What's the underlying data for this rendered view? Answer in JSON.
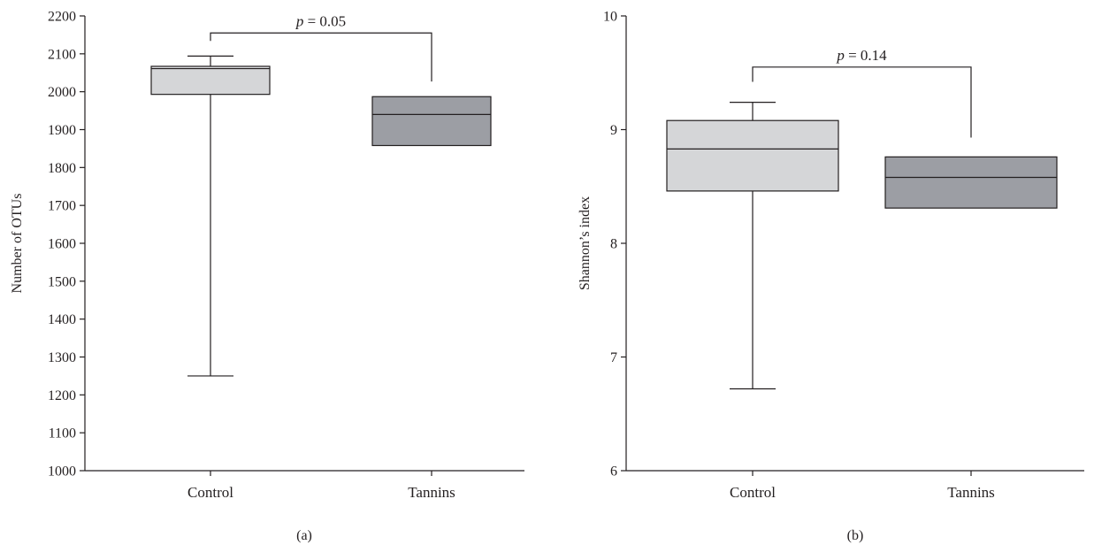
{
  "chart_data": [
    {
      "type": "box",
      "panel_label": "(a)",
      "ylabel": "Number of OTUs",
      "xlabel": "",
      "ylim": [
        1000,
        2200
      ],
      "yticks": [
        1000,
        1100,
        1200,
        1300,
        1400,
        1500,
        1600,
        1700,
        1800,
        1900,
        2000,
        2100,
        2200
      ],
      "categories": [
        "Control",
        "Tannins"
      ],
      "boxes": [
        {
          "category": "Control",
          "min": 1250,
          "q1": 1993,
          "median": 2061,
          "q3": 2067,
          "max": 2094,
          "color": "#d5d6d8"
        },
        {
          "category": "Tannins",
          "min": 1858,
          "q1": 1858,
          "median": 1940,
          "q3": 1987,
          "max": 1987,
          "color": "#9c9ea4"
        }
      ],
      "comparison": {
        "p_symbol": "p",
        "p_text": " = 0.05",
        "left_y": 2134,
        "top_y": 2155,
        "right_y": 2027
      }
    },
    {
      "type": "box",
      "panel_label": "(b)",
      "ylabel": "Shannon’s index",
      "xlabel": "",
      "ylim": [
        6,
        10
      ],
      "yticks": [
        6,
        7,
        8,
        9,
        10
      ],
      "categories": [
        "Control",
        "Tannins"
      ],
      "boxes": [
        {
          "category": "Control",
          "min": 6.72,
          "q1": 8.46,
          "median": 8.83,
          "q3": 9.08,
          "max": 9.24,
          "color": "#d5d6d8"
        },
        {
          "category": "Tannins",
          "min": 8.31,
          "q1": 8.31,
          "median": 8.58,
          "q3": 8.76,
          "max": 8.76,
          "color": "#9c9ea4"
        }
      ],
      "comparison": {
        "p_symbol": "p",
        "p_text": " = 0.14",
        "left_y": 9.42,
        "top_y": 9.55,
        "right_y": 8.93
      }
    }
  ]
}
